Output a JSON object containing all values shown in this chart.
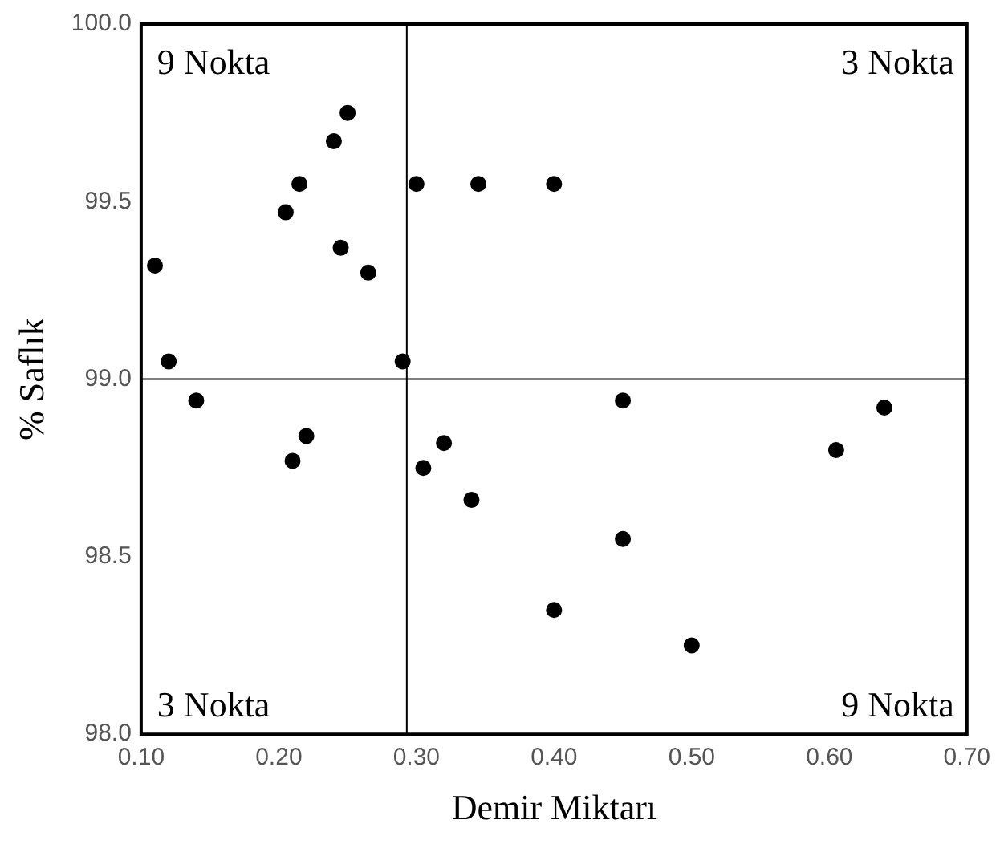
{
  "chart_data": {
    "type": "scatter",
    "xlabel": "Demir Miktarı",
    "ylabel": "% Saflık",
    "x": [
      0.11,
      0.12,
      0.14,
      0.205,
      0.215,
      0.21,
      0.22,
      0.24,
      0.25,
      0.245,
      0.265,
      0.29,
      0.3,
      0.305,
      0.32,
      0.34,
      0.345,
      0.4,
      0.4,
      0.45,
      0.45,
      0.5,
      0.605,
      0.64
    ],
    "values": [
      99.32,
      99.05,
      98.94,
      99.47,
      99.55,
      98.77,
      98.84,
      99.67,
      99.75,
      99.37,
      99.3,
      99.05,
      99.55,
      98.75,
      98.82,
      98.66,
      99.55,
      99.55,
      98.35,
      98.94,
      98.55,
      98.25,
      98.8,
      98.92
    ],
    "color": "#000000",
    "marker": "circle",
    "xlim": [
      0.1,
      0.7
    ],
    "xticks": [
      {
        "value": 0.1,
        "label": "0.10"
      },
      {
        "value": 0.2,
        "label": "0.20"
      },
      {
        "value": 0.3,
        "label": "0.30"
      },
      {
        "value": 0.4,
        "label": "0.40"
      },
      {
        "value": 0.5,
        "label": "0.50"
      },
      {
        "value": 0.6,
        "label": "0.60"
      },
      {
        "value": 0.7,
        "label": "0.70"
      }
    ],
    "ylim": [
      98,
      100
    ],
    "yticks": [
      {
        "value": 98,
        "label": "98.0"
      },
      {
        "value": 98.5,
        "label": "98.5"
      },
      {
        "value": 99,
        "label": "99.0"
      },
      {
        "value": 99.5,
        "label": "99.5"
      },
      {
        "value": 100,
        "label": "100.0"
      }
    ],
    "grid": false,
    "legend": false,
    "ref_lines": [
      {
        "axis": "x",
        "value": 0.293,
        "color": "#000000"
      },
      {
        "axis": "y",
        "value": 99.0,
        "color": "#000000"
      }
    ],
    "annotations": [
      "9 Nokta",
      "3 Nokta",
      "3 Nokta",
      "9 Nokta"
    ]
  }
}
